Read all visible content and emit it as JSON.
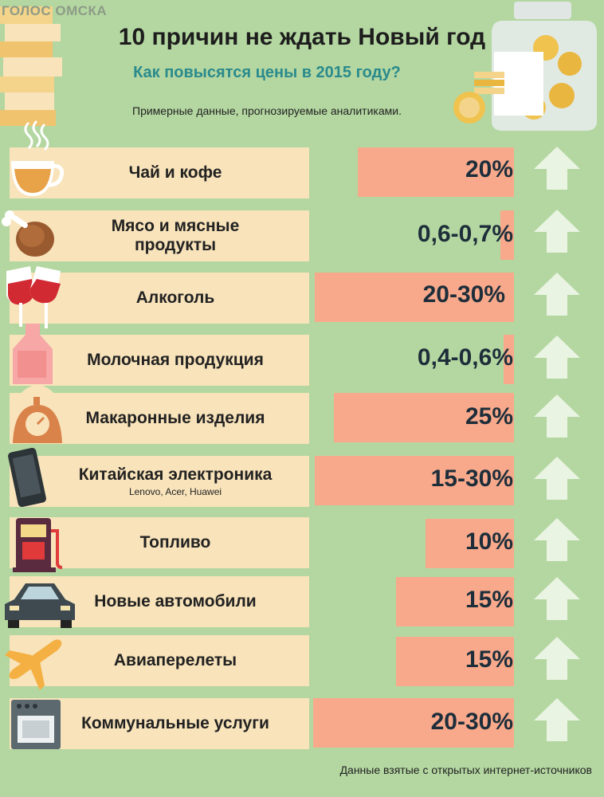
{
  "watermark": "ГОЛОС ОМСКА",
  "title": "10 причин не ждать Новый год",
  "subtitle": "Как повысятся цены в 2015 году?",
  "note": "Примерные данные, прогнозируемые аналитиками.",
  "footer": "Данные взятые с открытых интернет-источников",
  "colors": {
    "background": "#b4d7a1",
    "label": "#f8e3ba",
    "bar": "#f8a98b",
    "accent": "#2a8a8c",
    "arrow": "#e9f4e2"
  },
  "items": [
    {
      "label": "Чай и кофе",
      "value": "20%",
      "icon": "tea-cup-icon"
    },
    {
      "label": "Мясо и мясные продукты",
      "value": "0,6-0,7%",
      "icon": "chicken-leg-icon"
    },
    {
      "label": "Алкоголь",
      "value": "20-30%",
      "icon": "wine-glasses-icon"
    },
    {
      "label": "Молочная продукция",
      "value": "0,4-0,6%",
      "icon": "milk-bottle-icon"
    },
    {
      "label": "Макаронные изделия",
      "value": "25%",
      "icon": "scale-icon"
    },
    {
      "label": "Китайская электроника",
      "sub": "Lenovo, Acer, Huawei",
      "value": "15-30%",
      "icon": "smartphone-icon"
    },
    {
      "label": "Топливо",
      "value": "10%",
      "icon": "fuel-pump-icon"
    },
    {
      "label": "Новые автомобили",
      "value": "15%",
      "icon": "car-icon"
    },
    {
      "label": "Авиаперелеты",
      "value": "15%",
      "icon": "airplane-icon"
    },
    {
      "label": "Коммунальные услуги",
      "value": "20-30%",
      "icon": "stove-icon"
    }
  ]
}
